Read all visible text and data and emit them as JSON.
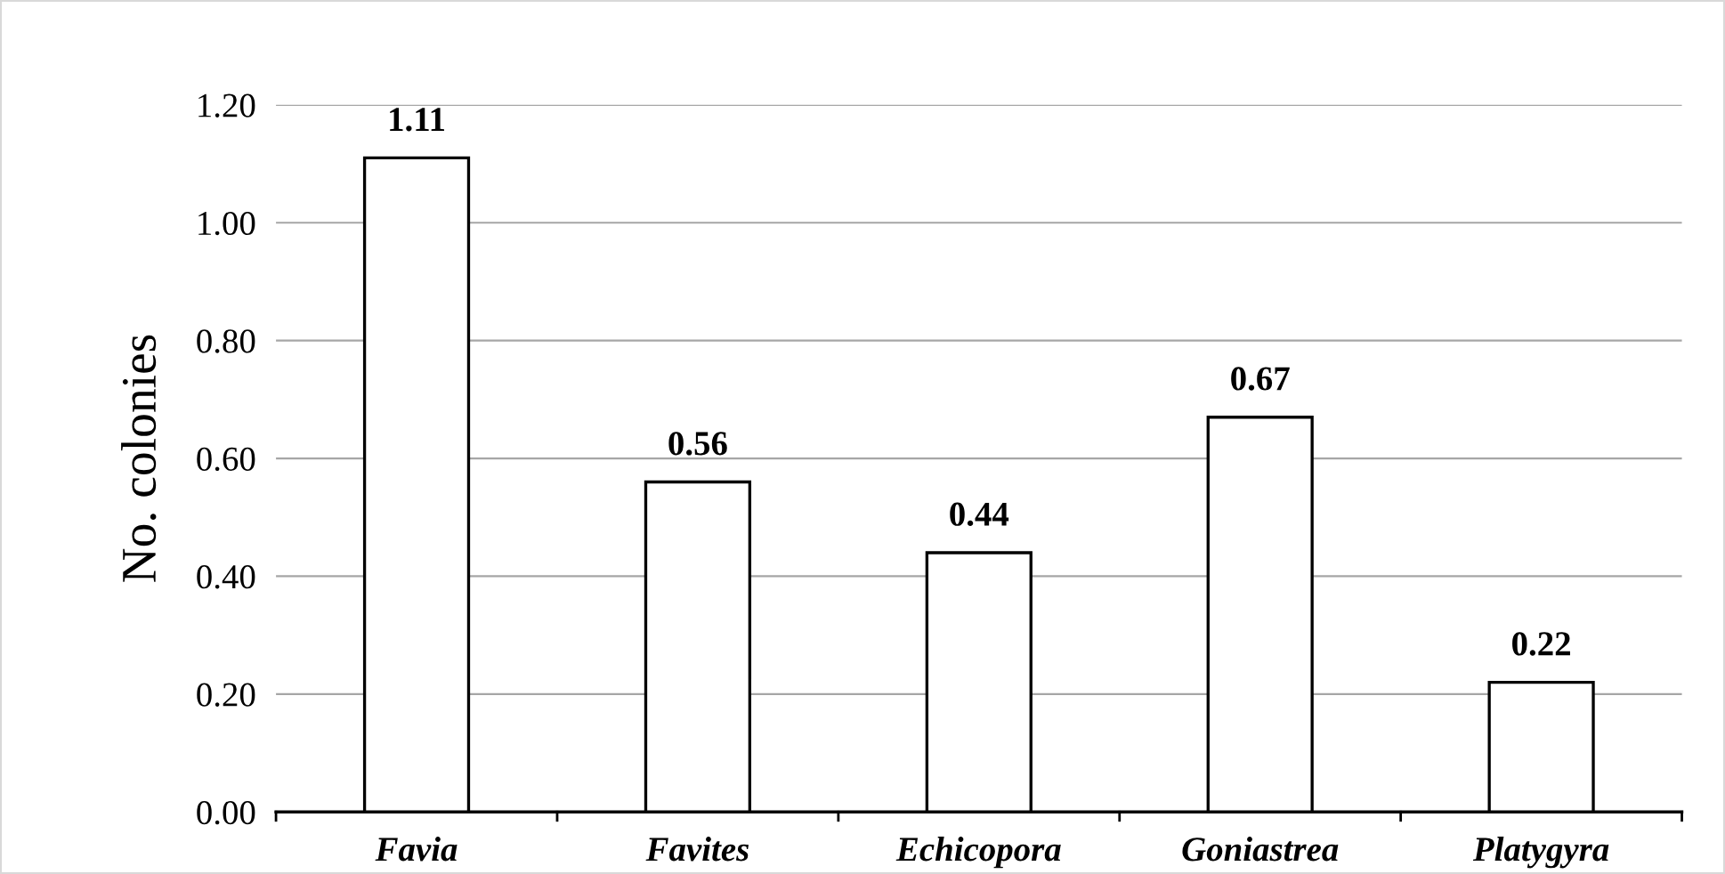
{
  "chart_data": {
    "type": "bar",
    "ylabel": "No. colonies",
    "categories": [
      "Favia",
      "Favites",
      "Echicopora",
      "Goniastrea",
      "Platygyra"
    ],
    "values": [
      1.11,
      0.56,
      0.44,
      0.67,
      0.22
    ],
    "color": "#ffffff",
    "ylim": [
      0,
      1.2
    ],
    "yticks": [
      {
        "value": 0,
        "label": "0.00"
      },
      {
        "value": 0.2,
        "label": "0.20"
      },
      {
        "value": 0.4,
        "label": "0.40"
      },
      {
        "value": 0.6,
        "label": "0.60"
      },
      {
        "value": 0.8,
        "label": "0.80"
      },
      {
        "value": 1.0,
        "label": "1.00"
      },
      {
        "value": 1.2,
        "label": "1.20"
      }
    ],
    "grid": "y",
    "data_labels": true
  }
}
